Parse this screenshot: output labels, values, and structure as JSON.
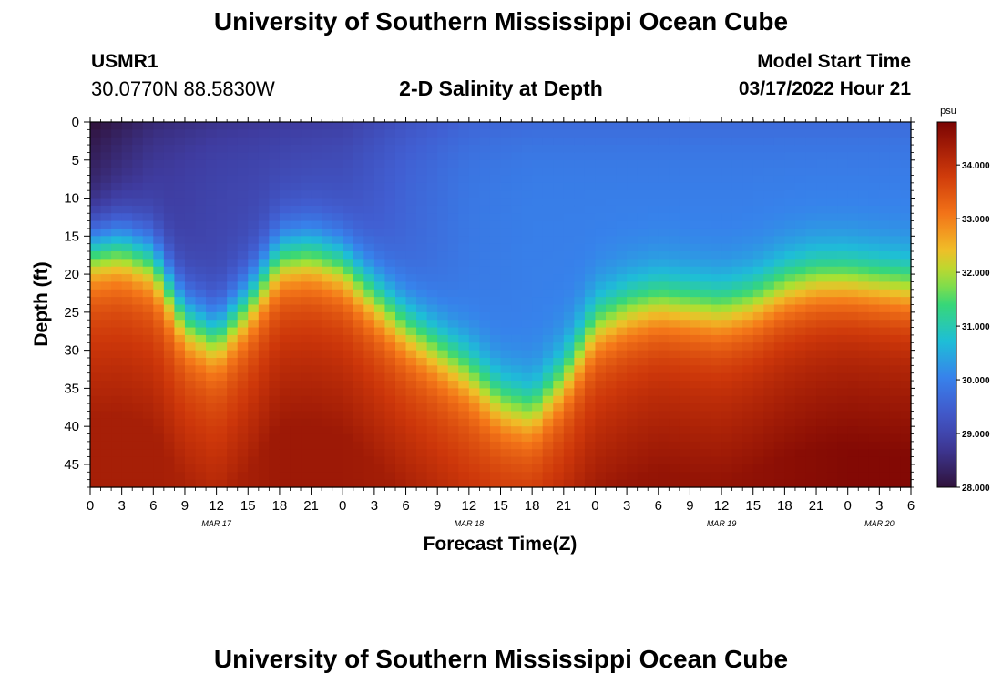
{
  "page": {
    "title_top": "University of Southern Mississippi Ocean Cube",
    "title_bottom": "University of Southern Mississippi Ocean Cube",
    "station_id": "USMR1",
    "station_coords": "30.0770N  88.5830W",
    "plot_title": "2-D Salinity at Depth",
    "model_start_label": "Model Start Time",
    "model_start_value": "03/17/2022 Hour 21"
  },
  "chart_data": {
    "type": "heatmap",
    "title": "2-D Salinity at Depth",
    "xlabel": "Forecast Time(Z)",
    "ylabel": "Depth (ft)",
    "x_range_hours": [
      0,
      78
    ],
    "y_range_ft": [
      0,
      48
    ],
    "x_ticks": [
      {
        "h": 0,
        "label": "0"
      },
      {
        "h": 3,
        "label": "3"
      },
      {
        "h": 6,
        "label": "6"
      },
      {
        "h": 9,
        "label": "9"
      },
      {
        "h": 12,
        "label": "12"
      },
      {
        "h": 15,
        "label": "15"
      },
      {
        "h": 18,
        "label": "18"
      },
      {
        "h": 21,
        "label": "21"
      },
      {
        "h": 24,
        "label": "0"
      },
      {
        "h": 27,
        "label": "3"
      },
      {
        "h": 30,
        "label": "6"
      },
      {
        "h": 33,
        "label": "9"
      },
      {
        "h": 36,
        "label": "12"
      },
      {
        "h": 39,
        "label": "15"
      },
      {
        "h": 42,
        "label": "18"
      },
      {
        "h": 45,
        "label": "21"
      },
      {
        "h": 48,
        "label": "0"
      },
      {
        "h": 51,
        "label": "3"
      },
      {
        "h": 54,
        "label": "6"
      },
      {
        "h": 57,
        "label": "9"
      },
      {
        "h": 60,
        "label": "12"
      },
      {
        "h": 63,
        "label": "15"
      },
      {
        "h": 66,
        "label": "18"
      },
      {
        "h": 69,
        "label": "21"
      },
      {
        "h": 72,
        "label": "0"
      },
      {
        "h": 75,
        "label": "3"
      },
      {
        "h": 78,
        "label": "6"
      }
    ],
    "date_labels": [
      {
        "h": 12,
        "label": "MAR 17"
      },
      {
        "h": 36,
        "label": "MAR 18"
      },
      {
        "h": 60,
        "label": "MAR 19"
      },
      {
        "h": 75,
        "label": "MAR 20"
      }
    ],
    "y_ticks": [
      0,
      5,
      10,
      15,
      20,
      25,
      30,
      35,
      40,
      45
    ],
    "colorbar": {
      "unit": "psu",
      "range": [
        28.0,
        34.8
      ],
      "ticks": [
        "28.000",
        "29.000",
        "30.000",
        "31.000",
        "32.000",
        "33.000",
        "34.000"
      ]
    },
    "field_model": {
      "surface_psu": [
        [
          0,
          28.3
        ],
        [
          6,
          28.8
        ],
        [
          12,
          29.0
        ],
        [
          18,
          29.1
        ],
        [
          24,
          29.2
        ],
        [
          30,
          29.6
        ],
        [
          36,
          29.9
        ],
        [
          42,
          30.0
        ],
        [
          48,
          30.0
        ],
        [
          60,
          30.0
        ],
        [
          72,
          30.0
        ],
        [
          78,
          30.0
        ]
      ],
      "halocline_depth_ft": [
        [
          0,
          17
        ],
        [
          3,
          16.5
        ],
        [
          6,
          18.5
        ],
        [
          9,
          26
        ],
        [
          12,
          28.5
        ],
        [
          15,
          24
        ],
        [
          18,
          18
        ],
        [
          21,
          17.5
        ],
        [
          24,
          19
        ],
        [
          27,
          23
        ],
        [
          30,
          27
        ],
        [
          33,
          30
        ],
        [
          36,
          33
        ],
        [
          39,
          37
        ],
        [
          42,
          38.5
        ],
        [
          45,
          34
        ],
        [
          48,
          27
        ],
        [
          51,
          25
        ],
        [
          54,
          24
        ],
        [
          57,
          24.5
        ],
        [
          60,
          25
        ],
        [
          63,
          24
        ],
        [
          66,
          22
        ],
        [
          69,
          21
        ],
        [
          72,
          21
        ],
        [
          75,
          21.5
        ],
        [
          78,
          22
        ]
      ],
      "max_psu": [
        [
          0,
          34.3
        ],
        [
          6,
          34.3
        ],
        [
          12,
          34.2
        ],
        [
          18,
          34.4
        ],
        [
          24,
          34.4
        ],
        [
          30,
          34.3
        ],
        [
          36,
          34.2
        ],
        [
          42,
          34.3
        ],
        [
          48,
          34.4
        ],
        [
          54,
          34.5
        ],
        [
          60,
          34.5
        ],
        [
          66,
          34.6
        ],
        [
          72,
          34.7
        ],
        [
          78,
          34.7
        ]
      ]
    }
  }
}
